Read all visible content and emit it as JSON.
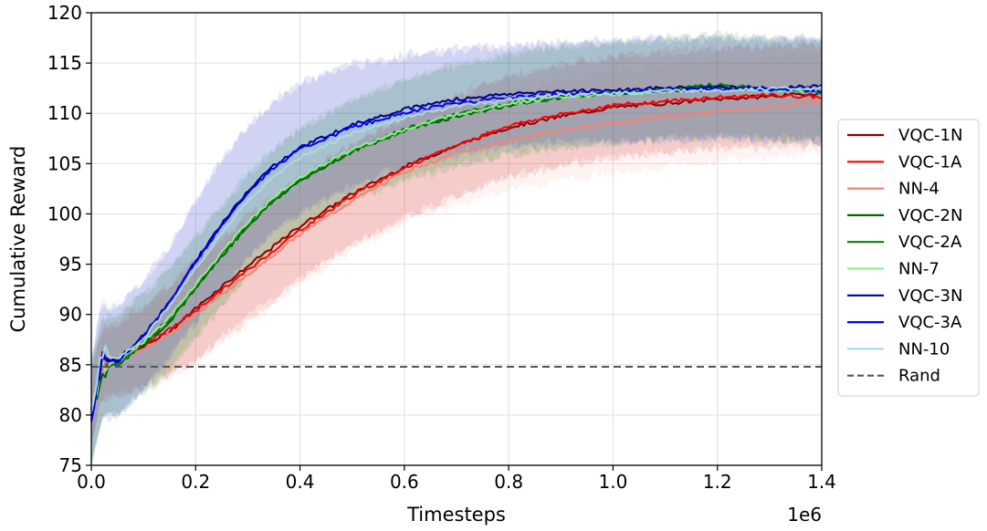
{
  "chart_data": {
    "type": "line",
    "xlabel": "Timesteps",
    "ylabel": "Cumulative Reward",
    "x_multiplier_label": "1e6",
    "xlim": [
      0.0,
      1.4
    ],
    "ylim": [
      75,
      120
    ],
    "xticks": [
      0.0,
      0.2,
      0.4,
      0.6,
      0.8,
      1.0,
      1.2,
      1.4
    ],
    "xtick_labels": [
      "0.0",
      "0.2",
      "0.4",
      "0.6",
      "0.8",
      "1.0",
      "1.2",
      "1.4"
    ],
    "yticks": [
      75,
      80,
      85,
      90,
      95,
      100,
      105,
      110,
      115,
      120
    ],
    "ytick_labels": [
      "75",
      "80",
      "85",
      "90",
      "95",
      "100",
      "105",
      "110",
      "115",
      "120"
    ],
    "grid": true,
    "legend_position": "right",
    "x": [
      0.0,
      0.02,
      0.05,
      0.1,
      0.15,
      0.2,
      0.25,
      0.3,
      0.35,
      0.4,
      0.5,
      0.6,
      0.7,
      0.8,
      0.9,
      1.0,
      1.1,
      1.2,
      1.3,
      1.4
    ],
    "series": [
      {
        "name": "VQC-1N",
        "color": "#8b0000",
        "dash": false,
        "values": [
          80.5,
          85.0,
          85.4,
          86.8,
          88.3,
          90.6,
          92.8,
          94.8,
          96.8,
          98.8,
          102.0,
          104.7,
          106.8,
          108.6,
          109.7,
          110.6,
          111.0,
          111.4,
          111.7,
          112.0
        ],
        "band": [
          3.5,
          3.5,
          3.5,
          4.0,
          4.5,
          5.0,
          5.0,
          5.0,
          5.0,
          5.0,
          5.0,
          5.0,
          5.0,
          5.0,
          5.0,
          5.0,
          5.0,
          5.0,
          5.0,
          5.0
        ]
      },
      {
        "name": "VQC-1A",
        "color": "#ff0000",
        "dash": false,
        "values": [
          81.0,
          85.2,
          85.6,
          87.0,
          88.5,
          90.4,
          92.4,
          94.4,
          96.4,
          98.4,
          101.8,
          104.6,
          106.8,
          108.8,
          109.9,
          110.8,
          111.2,
          111.6,
          111.8,
          111.6
        ],
        "band": [
          3.5,
          3.5,
          3.5,
          4.0,
          4.5,
          5.0,
          5.0,
          5.0,
          5.0,
          5.0,
          5.0,
          5.0,
          5.0,
          5.0,
          5.0,
          5.0,
          5.0,
          5.0,
          5.0,
          5.0
        ]
      },
      {
        "name": "NN-4",
        "color": "#fa8072",
        "dash": false,
        "values": [
          80.8,
          85.0,
          85.3,
          86.6,
          88.0,
          90.0,
          92.0,
          94.0,
          96.0,
          98.0,
          101.3,
          104.2,
          106.0,
          107.3,
          108.3,
          109.0,
          109.7,
          110.2,
          110.6,
          111.2
        ],
        "band": [
          3.5,
          3.5,
          3.5,
          4.0,
          4.5,
          5.0,
          5.0,
          5.0,
          5.0,
          5.0,
          5.0,
          5.0,
          5.0,
          5.0,
          5.0,
          5.0,
          5.0,
          5.0,
          5.0,
          5.0
        ]
      },
      {
        "name": "VQC-2N",
        "color": "#006400",
        "dash": false,
        "values": [
          80.0,
          84.5,
          85.0,
          87.0,
          89.3,
          92.6,
          95.8,
          98.8,
          101.3,
          103.3,
          106.2,
          108.3,
          109.7,
          110.8,
          111.6,
          112.0,
          112.3,
          112.6,
          112.4,
          112.3
        ],
        "band": [
          5.0,
          5.0,
          5.0,
          5.0,
          5.0,
          5.0,
          5.0,
          5.0,
          5.0,
          5.0,
          5.0,
          5.0,
          5.0,
          5.0,
          5.0,
          5.0,
          5.0,
          5.0,
          5.0,
          5.0
        ]
      },
      {
        "name": "VQC-2A",
        "color": "#008000",
        "dash": false,
        "values": [
          80.3,
          84.6,
          85.1,
          87.2,
          89.5,
          92.8,
          96.0,
          99.0,
          101.5,
          103.5,
          106.3,
          108.4,
          109.9,
          111.0,
          111.7,
          112.1,
          112.4,
          112.9,
          112.4,
          112.1
        ],
        "band": [
          5.0,
          5.0,
          5.0,
          5.0,
          5.0,
          5.0,
          5.0,
          5.0,
          5.0,
          5.0,
          5.0,
          5.0,
          5.0,
          5.0,
          5.0,
          5.0,
          5.0,
          5.0,
          5.0,
          5.0
        ]
      },
      {
        "name": "NN-7",
        "color": "#90ee90",
        "dash": false,
        "values": [
          80.4,
          84.8,
          85.3,
          87.3,
          89.7,
          93.0,
          96.2,
          99.2,
          101.7,
          103.7,
          106.4,
          108.4,
          109.9,
          111.0,
          111.6,
          111.9,
          112.2,
          112.4,
          112.3,
          112.2
        ],
        "band": [
          5.0,
          5.0,
          5.0,
          5.0,
          5.0,
          5.0,
          5.0,
          5.0,
          5.0,
          5.0,
          5.0,
          5.0,
          5.0,
          5.0,
          5.0,
          5.0,
          5.0,
          5.0,
          5.0,
          5.0
        ]
      },
      {
        "name": "VQC-3N",
        "color": "#00008b",
        "dash": false,
        "values": [
          80.0,
          85.5,
          85.5,
          87.9,
          91.3,
          95.3,
          99.0,
          102.3,
          104.8,
          106.6,
          108.9,
          110.4,
          111.4,
          111.9,
          112.2,
          112.3,
          112.5,
          112.6,
          112.5,
          112.7
        ],
        "band": [
          5.5,
          5.5,
          5.5,
          5.5,
          5.5,
          6.0,
          6.5,
          6.5,
          6.5,
          6.5,
          6.0,
          5.5,
          5.2,
          5.0,
          5.0,
          5.0,
          5.0,
          5.0,
          5.0,
          5.0
        ]
      },
      {
        "name": "VQC-3A",
        "color": "#0000ff",
        "dash": false,
        "values": [
          80.2,
          85.3,
          85.3,
          87.8,
          91.2,
          95.2,
          98.9,
          102.2,
          104.6,
          106.4,
          108.6,
          110.1,
          111.0,
          111.6,
          111.9,
          112.1,
          112.3,
          112.4,
          112.4,
          112.3
        ],
        "band": [
          5.5,
          5.5,
          5.5,
          5.5,
          5.5,
          6.0,
          6.5,
          6.5,
          6.5,
          6.5,
          6.0,
          5.5,
          5.2,
          5.0,
          5.0,
          5.0,
          5.0,
          5.0,
          5.0,
          5.0
        ]
      },
      {
        "name": "NN-10",
        "color": "#add8e6",
        "dash": false,
        "values": [
          80.5,
          86.3,
          85.6,
          87.6,
          90.8,
          94.6,
          98.1,
          101.2,
          103.7,
          105.6,
          108.0,
          109.6,
          110.7,
          111.4,
          111.8,
          112.0,
          112.2,
          112.3,
          112.4,
          112.5
        ],
        "band": [
          5.5,
          5.5,
          5.5,
          5.5,
          5.5,
          6.0,
          6.5,
          6.5,
          6.5,
          6.5,
          6.0,
          5.5,
          5.2,
          5.0,
          5.0,
          5.0,
          5.0,
          5.0,
          5.0,
          5.0
        ]
      },
      {
        "name": "Rand",
        "color": "#555555",
        "dash": true,
        "values": [
          84.8,
          84.8,
          84.8,
          84.8,
          84.8,
          84.8,
          84.8,
          84.8,
          84.8,
          84.8,
          84.8,
          84.8,
          84.8,
          84.8,
          84.8,
          84.8,
          84.8,
          84.8,
          84.8,
          84.8
        ]
      }
    ]
  }
}
